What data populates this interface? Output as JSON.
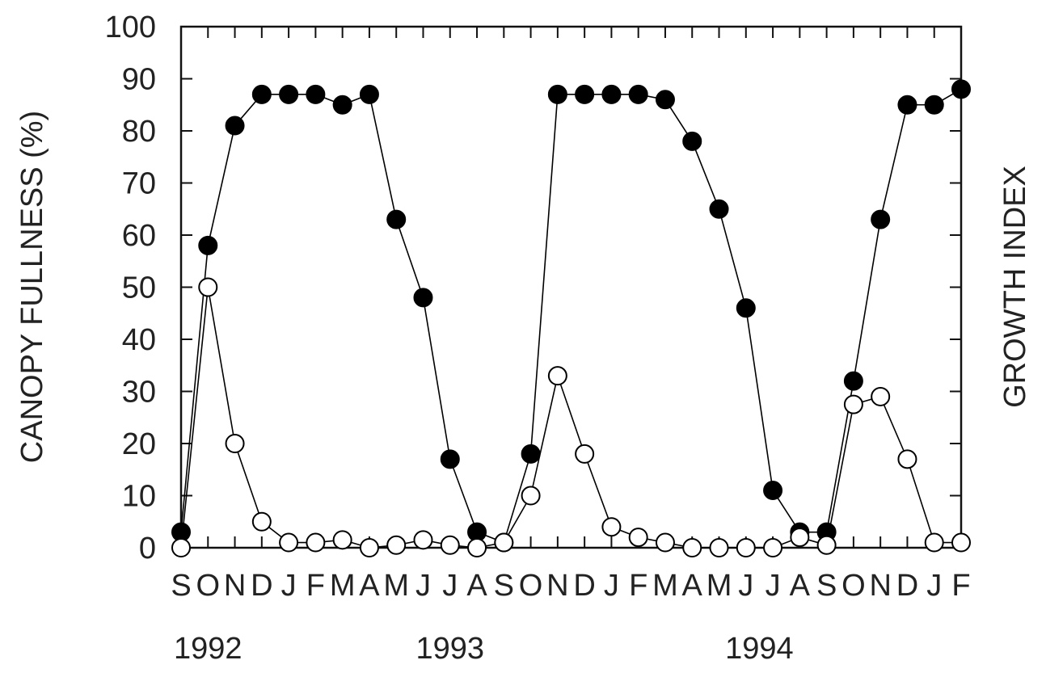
{
  "chart_data": {
    "type": "line",
    "ylabel": "CANOPY FULLNESS (%)",
    "y2label": "GROWTH INDEX",
    "ylim": [
      0,
      100
    ],
    "yticks": [
      0,
      10,
      20,
      30,
      40,
      50,
      60,
      70,
      80,
      90,
      100
    ],
    "ytick_labels": [
      "0",
      "10",
      "20",
      "30",
      "40",
      "50",
      "60",
      "70",
      "80",
      "90",
      "100"
    ],
    "x_month_labels": [
      "S",
      "O",
      "N",
      "D",
      "J",
      "F",
      "M",
      "A",
      "M",
      "J",
      "J",
      "A",
      "S",
      "O",
      "N",
      "D",
      "J",
      "F",
      "M",
      "A",
      "M",
      "J",
      "J",
      "A",
      "S",
      "O",
      "N",
      "D",
      "J",
      "F"
    ],
    "years": [
      {
        "label": "1992",
        "month_index": 1
      },
      {
        "label": "1993",
        "month_index": 10
      },
      {
        "label": "1994",
        "month_index": 21.5
      }
    ],
    "grid": false,
    "series": [
      {
        "marker": "filled-circle",
        "color": "#000000",
        "x": [
          0,
          1,
          2,
          3,
          4,
          5,
          6,
          7,
          8,
          9,
          10,
          11,
          12,
          13,
          14,
          15,
          16,
          17,
          18,
          19,
          20,
          21,
          22,
          23,
          24,
          25,
          26,
          27,
          28,
          29
        ],
        "values": [
          3,
          58,
          81,
          87,
          87,
          87,
          85,
          87,
          63,
          48,
          17,
          3,
          1,
          18,
          87,
          87,
          87,
          87,
          86,
          78,
          65,
          46,
          11,
          3,
          3,
          32,
          63,
          85,
          85,
          88
        ]
      },
      {
        "marker": "open-circle",
        "color": "#000000",
        "x": [
          0,
          1,
          2,
          3,
          4,
          5,
          6,
          7,
          8,
          9,
          10,
          11,
          12,
          13,
          14,
          15,
          16,
          17,
          18,
          19,
          20,
          21,
          22,
          23,
          24,
          25,
          26,
          27,
          28,
          29
        ],
        "values": [
          0,
          50,
          20,
          5,
          1,
          1,
          1.5,
          0,
          0.5,
          1.5,
          0.5,
          0,
          1,
          10,
          33,
          18,
          4,
          2,
          1,
          0,
          0,
          0,
          0,
          2,
          0.5,
          27.5,
          29,
          17,
          1,
          1
        ]
      }
    ]
  }
}
